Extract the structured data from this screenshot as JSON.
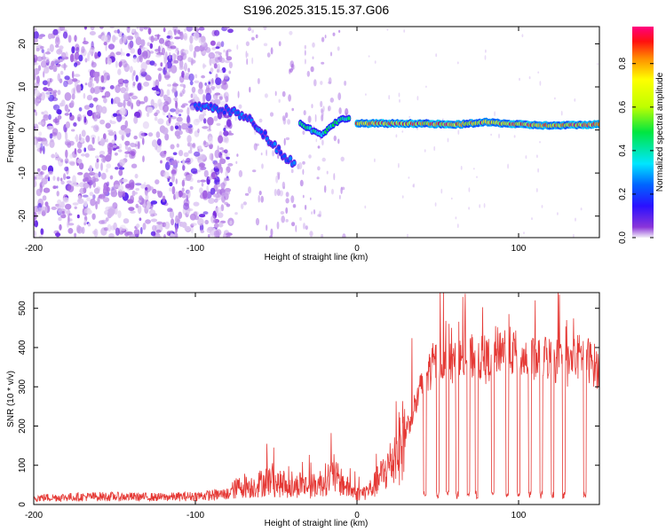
{
  "chart_data": [
    {
      "type": "heatmap",
      "title": "S196.2025.315.15.37.G06",
      "xlabel": "Height of straight line (km)",
      "ylabel": "Frequency (Hz)",
      "xlim": [
        -200,
        150
      ],
      "ylim": [
        -25,
        24
      ],
      "xticks": [
        -200,
        -100,
        0,
        100
      ],
      "yticks": [
        -20,
        -10,
        0,
        10,
        20
      ],
      "colorbar": {
        "label": "Normalized spectral amplitude",
        "range": [
          0.0,
          0.97
        ],
        "ticks": [
          0.0,
          0.2,
          0.4,
          0.6,
          0.8
        ]
      },
      "features": [
        {
          "name": "broadband noise",
          "x_range": [
            -200,
            -78
          ],
          "freq_range": [
            -25,
            24
          ],
          "amplitude": 0.1
        },
        {
          "name": "tracking transient",
          "x": [
            -100,
            -85,
            -75,
            -65,
            -55,
            -45,
            -38
          ],
          "freq": [
            5.5,
            5,
            4,
            2,
            -2,
            -6,
            -8
          ],
          "amplitude": 0.25
        },
        {
          "name": "tone onset",
          "x": [
            -35,
            -28,
            -22,
            -17,
            -12,
            -5
          ],
          "freq": [
            1.5,
            0,
            -1,
            0.5,
            2,
            3
          ],
          "amplitude": 0.45
        },
        {
          "name": "tone line",
          "x": [
            0,
            20,
            40,
            60,
            80,
            100,
            120,
            150
          ],
          "freq": [
            1.5,
            1.5,
            1.5,
            1.2,
            1.8,
            1.3,
            1.0,
            1.3
          ],
          "amplitude": 0.85
        }
      ]
    },
    {
      "type": "line",
      "xlabel": "Height of straight line (km)",
      "ylabel": "SNR (10 * v/v)",
      "xlim": [
        -200,
        150
      ],
      "ylim": [
        0,
        540
      ],
      "xticks": [
        -200,
        -100,
        0,
        100
      ],
      "yticks": [
        0,
        100,
        200,
        300,
        400,
        500
      ],
      "series": [
        {
          "name": "SNR",
          "color": "#e53935",
          "x": [
            -200,
            -180,
            -160,
            -140,
            -120,
            -100,
            -90,
            -80,
            -75,
            -70,
            -65,
            -60,
            -55,
            -50,
            -45,
            -40,
            -35,
            -30,
            -25,
            -20,
            -15,
            -10,
            -5,
            0,
            5,
            10,
            15,
            20,
            25,
            30,
            35,
            40,
            45,
            50,
            55,
            60,
            65,
            70,
            75,
            80,
            85,
            90,
            95,
            100,
            105,
            110,
            115,
            120,
            125,
            130,
            135,
            140,
            145,
            150
          ],
          "y": [
            20,
            22,
            24,
            23,
            22,
            25,
            28,
            32,
            45,
            55,
            50,
            60,
            70,
            60,
            55,
            45,
            60,
            50,
            55,
            70,
            80,
            65,
            45,
            30,
            35,
            50,
            80,
            110,
            150,
            200,
            260,
            320,
            370,
            400,
            390,
            380,
            400,
            410,
            405,
            390,
            420,
            430,
            420,
            410,
            400,
            395,
            405,
            400,
            390,
            380,
            400,
            410,
            390,
            370
          ]
        }
      ],
      "dropouts_x": [
        42,
        50,
        56,
        62,
        69,
        74,
        84,
        93,
        100,
        107,
        114,
        121,
        128,
        141
      ]
    }
  ]
}
